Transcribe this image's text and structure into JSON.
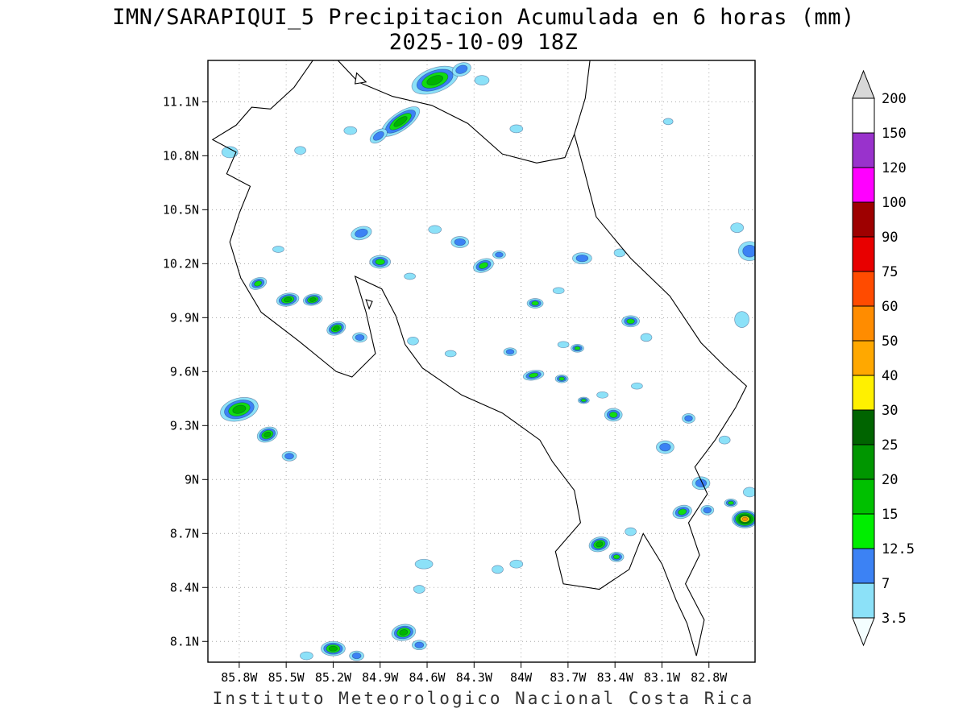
{
  "title": {
    "line1": "IMN/SARAPIQUI_5 Precipitacion Acumulada en 6 horas (mm)",
    "line2": "2025-10-09 18Z"
  },
  "footer": "Instituto Meteorologico Nacional Costa Rica",
  "map": {
    "extent": {
      "lon_west_deg_w": 86.0,
      "lon_east_deg_w": 82.5,
      "lat_south_deg_n": 7.99,
      "lat_north_deg_n": 11.33
    },
    "lat_ticks": [
      "11.1N",
      "10.8N",
      "10.5N",
      "10.2N",
      "9.9N",
      "9.6N",
      "9.3N",
      "9N",
      "8.7N",
      "8.4N",
      "8.1N"
    ],
    "lat_tick_values": [
      11.1,
      10.8,
      10.5,
      10.2,
      9.9,
      9.6,
      9.3,
      9.0,
      8.7,
      8.4,
      8.1
    ],
    "lon_ticks": [
      "85.8W",
      "85.5W",
      "85.2W",
      "84.9W",
      "84.6W",
      "84.3W",
      "84W",
      "83.7W",
      "83.4W",
      "83.1W",
      "82.8W"
    ],
    "lon_tick_values": [
      85.8,
      85.5,
      85.2,
      84.9,
      84.6,
      84.3,
      84.0,
      83.7,
      83.4,
      83.1,
      82.8
    ],
    "coastlines": [
      [
        [
          85.33,
          11.33
        ],
        [
          85.45,
          11.18
        ],
        [
          85.6,
          11.06
        ],
        [
          85.72,
          11.07
        ],
        [
          85.82,
          10.97
        ],
        [
          85.97,
          10.89
        ],
        [
          85.82,
          10.82
        ],
        [
          85.88,
          10.7
        ],
        [
          85.73,
          10.63
        ],
        [
          85.8,
          10.48
        ],
        [
          85.86,
          10.32
        ],
        [
          85.79,
          10.12
        ],
        [
          85.66,
          9.93
        ],
        [
          85.42,
          9.77
        ],
        [
          85.18,
          9.6
        ],
        [
          85.08,
          9.57
        ],
        [
          84.93,
          9.7
        ],
        [
          84.99,
          9.93
        ],
        [
          85.06,
          10.13
        ],
        [
          84.89,
          10.06
        ],
        [
          84.8,
          9.91
        ],
        [
          84.74,
          9.75
        ],
        [
          84.63,
          9.62
        ],
        [
          84.38,
          9.47
        ],
        [
          84.12,
          9.37
        ],
        [
          83.88,
          9.22
        ],
        [
          83.8,
          9.1
        ],
        [
          83.66,
          8.94
        ],
        [
          83.62,
          8.76
        ],
        [
          83.78,
          8.6
        ],
        [
          83.73,
          8.42
        ],
        [
          83.5,
          8.39
        ],
        [
          83.31,
          8.5
        ],
        [
          83.22,
          8.7
        ],
        [
          83.1,
          8.53
        ],
        [
          83.01,
          8.33
        ],
        [
          82.94,
          8.2
        ],
        [
          82.88,
          8.02
        ],
        [
          82.83,
          8.22
        ],
        [
          82.95,
          8.42
        ],
        [
          82.86,
          8.58
        ],
        [
          82.93,
          8.76
        ],
        [
          82.81,
          8.92
        ],
        [
          82.89,
          9.07
        ],
        [
          82.76,
          9.22
        ],
        [
          82.63,
          9.4
        ],
        [
          82.56,
          9.52
        ],
        [
          82.7,
          9.63
        ],
        [
          82.85,
          9.76
        ],
        [
          83.05,
          10.02
        ],
        [
          83.3,
          10.23
        ],
        [
          83.52,
          10.46
        ],
        [
          83.6,
          10.73
        ],
        [
          83.66,
          10.92
        ],
        [
          83.72,
          10.79
        ],
        [
          83.9,
          10.76
        ],
        [
          84.12,
          10.81
        ],
        [
          84.34,
          10.98
        ],
        [
          84.57,
          11.08
        ],
        [
          84.82,
          11.13
        ],
        [
          85.04,
          11.21
        ],
        [
          85.17,
          11.33
        ]
      ],
      [
        [
          83.66,
          10.92
        ],
        [
          83.59,
          11.12
        ],
        [
          83.56,
          11.33
        ]
      ]
    ],
    "islands": [
      [
        [
          85.05,
          11.26
        ],
        [
          84.99,
          11.21
        ],
        [
          85.06,
          11.2
        ]
      ],
      [
        [
          84.99,
          10.0
        ],
        [
          84.95,
          9.99
        ],
        [
          84.97,
          9.95
        ]
      ]
    ]
  },
  "blob_ring_palette": [
    "#8ce1f8",
    "#3c82f4",
    "#12dc12",
    "#00b400",
    "#008c00",
    "#ffe400",
    "#ff9000"
  ],
  "precip_cells_format": "lon_w, lat_n, rx_px, ry_px, rotation_deg, intensity_level(1=3.5mm..7=50mm+)",
  "precip_cells": [
    [
      84.55,
      11.22,
      30,
      15,
      -20,
      4
    ],
    [
      84.38,
      11.28,
      12,
      8,
      -20,
      2
    ],
    [
      84.25,
      11.22,
      9,
      6,
      0,
      1
    ],
    [
      84.77,
      10.99,
      28,
      11,
      -35,
      4
    ],
    [
      84.91,
      10.91,
      12,
      7,
      -35,
      2
    ],
    [
      85.09,
      10.94,
      8,
      5,
      0,
      1
    ],
    [
      84.03,
      10.95,
      8,
      5,
      0,
      1
    ],
    [
      85.86,
      10.82,
      10,
      7,
      0,
      1
    ],
    [
      85.41,
      10.83,
      7,
      5,
      0,
      1
    ],
    [
      83.06,
      10.99,
      6,
      4,
      0,
      1
    ],
    [
      82.54,
      10.27,
      14,
      12,
      0,
      2
    ],
    [
      82.62,
      10.4,
      8,
      6,
      0,
      1
    ],
    [
      85.02,
      10.37,
      13,
      8,
      -15,
      2
    ],
    [
      84.55,
      10.39,
      8,
      5,
      0,
      1
    ],
    [
      84.39,
      10.32,
      11,
      7,
      0,
      2
    ],
    [
      84.24,
      10.19,
      13,
      8,
      -20,
      3
    ],
    [
      84.14,
      10.25,
      8,
      5,
      0,
      2
    ],
    [
      84.9,
      10.21,
      13,
      8,
      0,
      3
    ],
    [
      83.61,
      10.23,
      12,
      7,
      0,
      2
    ],
    [
      83.37,
      10.26,
      7,
      5,
      0,
      1
    ],
    [
      85.68,
      10.09,
      11,
      7,
      -20,
      3
    ],
    [
      85.49,
      10.0,
      14,
      8,
      -10,
      4
    ],
    [
      85.33,
      10.0,
      12,
      7,
      -10,
      4
    ],
    [
      85.18,
      9.84,
      12,
      8,
      -20,
      4
    ],
    [
      85.03,
      9.79,
      9,
      6,
      0,
      2
    ],
    [
      84.71,
      10.13,
      7,
      4,
      0,
      1
    ],
    [
      84.69,
      9.77,
      7,
      5,
      0,
      1
    ],
    [
      84.45,
      9.7,
      7,
      4,
      0,
      1
    ],
    [
      84.07,
      9.71,
      8,
      5,
      0,
      2
    ],
    [
      83.91,
      9.98,
      10,
      6,
      0,
      3
    ],
    [
      83.76,
      10.05,
      7,
      4,
      0,
      1
    ],
    [
      83.3,
      9.88,
      11,
      7,
      0,
      3
    ],
    [
      83.2,
      9.79,
      7,
      5,
      0,
      1
    ],
    [
      83.64,
      9.73,
      8,
      5,
      0,
      3
    ],
    [
      82.59,
      9.89,
      9,
      10,
      0,
      1
    ],
    [
      83.92,
      9.58,
      13,
      6,
      -10,
      3
    ],
    [
      83.74,
      9.56,
      8,
      5,
      0,
      3
    ],
    [
      83.48,
      9.47,
      7,
      4,
      0,
      1
    ],
    [
      83.6,
      9.44,
      7,
      4,
      0,
      3
    ],
    [
      83.26,
      9.52,
      7,
      4,
      0,
      1
    ],
    [
      82.93,
      9.34,
      8,
      6,
      0,
      2
    ],
    [
      83.41,
      9.36,
      11,
      8,
      0,
      3
    ],
    [
      85.8,
      9.39,
      24,
      14,
      -15,
      4
    ],
    [
      85.62,
      9.25,
      13,
      9,
      -20,
      4
    ],
    [
      85.48,
      9.13,
      9,
      6,
      0,
      2
    ],
    [
      83.08,
      9.18,
      11,
      8,
      0,
      2
    ],
    [
      82.7,
      9.22,
      7,
      5,
      0,
      1
    ],
    [
      82.85,
      8.98,
      11,
      8,
      0,
      2
    ],
    [
      82.54,
      8.93,
      8,
      6,
      0,
      1
    ],
    [
      82.97,
      8.82,
      12,
      8,
      -15,
      3
    ],
    [
      82.81,
      8.83,
      8,
      6,
      0,
      2
    ],
    [
      82.57,
      8.78,
      16,
      11,
      0,
      7
    ],
    [
      82.66,
      8.87,
      8,
      5,
      0,
      3
    ],
    [
      83.3,
      8.71,
      7,
      5,
      0,
      1
    ],
    [
      83.5,
      8.64,
      13,
      9,
      -15,
      4
    ],
    [
      83.39,
      8.57,
      9,
      6,
      0,
      3
    ],
    [
      84.03,
      8.53,
      8,
      5,
      0,
      1
    ],
    [
      84.15,
      8.5,
      7,
      5,
      0,
      1
    ],
    [
      84.62,
      8.53,
      11,
      6,
      0,
      1
    ],
    [
      84.65,
      8.39,
      7,
      5,
      0,
      1
    ],
    [
      84.75,
      8.15,
      15,
      10,
      -10,
      4
    ],
    [
      84.65,
      8.08,
      9,
      6,
      0,
      2
    ],
    [
      85.2,
      8.06,
      15,
      9,
      0,
      4
    ],
    [
      85.37,
      8.02,
      8,
      5,
      0,
      1
    ],
    [
      85.05,
      8.02,
      9,
      6,
      0,
      2
    ],
    [
      85.55,
      10.28,
      7,
      4,
      0,
      1
    ],
    [
      83.73,
      9.75,
      7,
      4,
      0,
      1
    ]
  ],
  "colorbar": {
    "unit": "mm",
    "labels_top_to_bottom": [
      "200",
      "150",
      "120",
      "100",
      "90",
      "75",
      "60",
      "50",
      "40",
      "30",
      "25",
      "20",
      "15",
      "12.5",
      "7",
      "3.5"
    ],
    "segment_colors_top_to_bottom": [
      "#ffffff",
      "#9932cc",
      "#ff00ff",
      "#9e0000",
      "#e80000",
      "#ff4b00",
      "#ff8c00",
      "#ffa800",
      "#fff000",
      "#006400",
      "#009600",
      "#00c000",
      "#00ee00",
      "#3c82f4",
      "#8ce1f8"
    ],
    "above_max_color": "#d8d8d8",
    "below_min_color": "#f4feff"
  }
}
